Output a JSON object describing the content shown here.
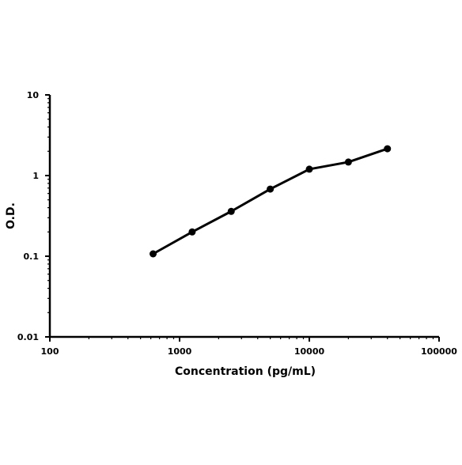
{
  "chart_data": {
    "type": "line",
    "x_label": "Concentration (pg/mL)",
    "y_label": "O.D.",
    "x": [
      625,
      1250,
      2500,
      5000,
      10000,
      20000,
      40000
    ],
    "series": [
      {
        "color": "#000000",
        "values": [
          0.107,
          0.2,
          0.36,
          0.68,
          1.2,
          1.47,
          2.15
        ]
      }
    ],
    "xlim": [
      100,
      100000
    ],
    "ylim": [
      0.01,
      10
    ],
    "xticks": [
      100,
      1000,
      10000,
      100000
    ],
    "yticks": [
      0.01,
      0.1,
      1,
      10
    ],
    "xscale": "log",
    "yscale": "log",
    "grid": false
  }
}
